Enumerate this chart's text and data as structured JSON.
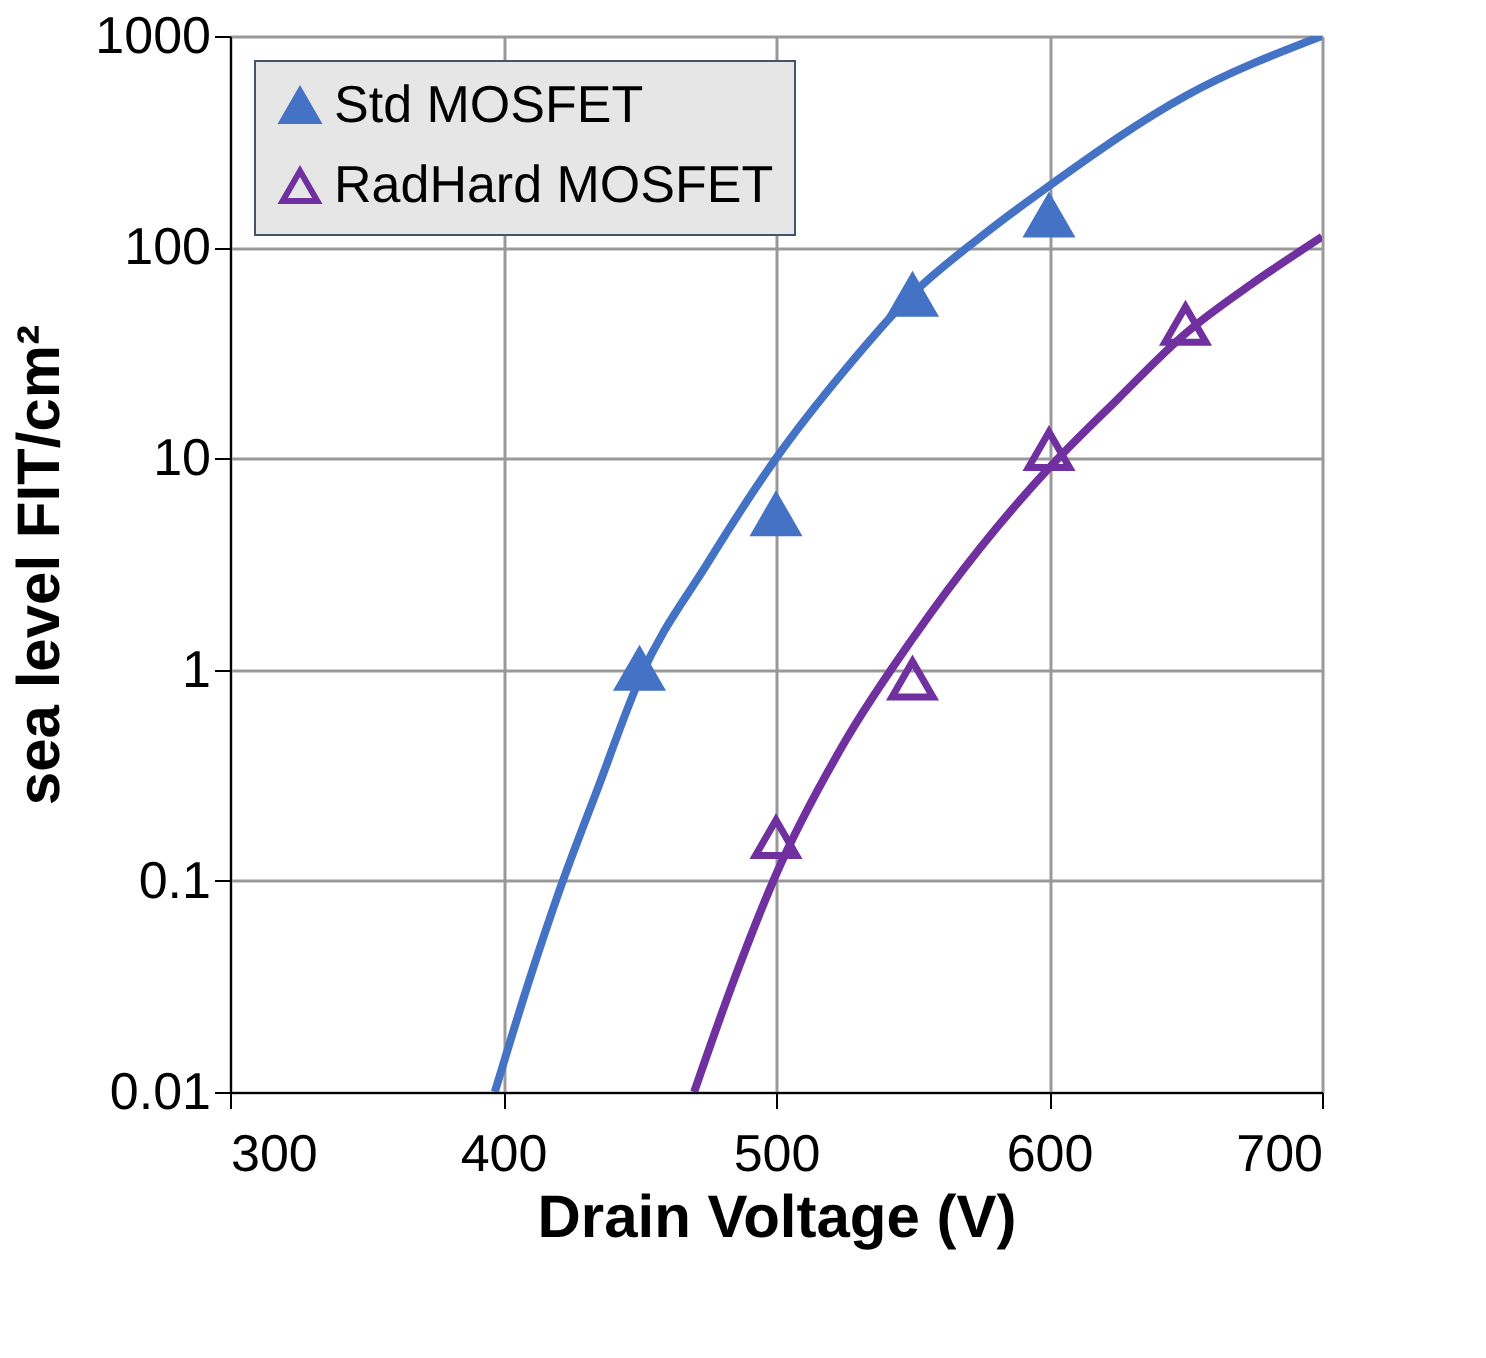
{
  "chart_data": {
    "type": "scatter",
    "xlabel": "Drain Voltage (V)",
    "ylabel": "sea level FIT/cm²",
    "xlim": [
      300,
      700
    ],
    "xticks": [
      300,
      400,
      500,
      600,
      700
    ],
    "ylim": [
      0.01,
      1000
    ],
    "yticks": [
      0.01,
      0.1,
      1,
      10,
      100,
      1000
    ],
    "log": true,
    "grid": true,
    "legend": "top left",
    "series": [
      {
        "name": "Std MOSFET",
        "color": "#4472c4",
        "marker": "triangle",
        "x": [
          450,
          500,
          550,
          600
        ],
        "values": [
          1.0,
          5.4,
          59,
          140
        ]
      },
      {
        "name": "RadHard MOSFET",
        "color": "#7030a0",
        "marker": "triangle",
        "x": [
          500,
          550,
          600,
          650
        ],
        "values": [
          0.16,
          0.9,
          11,
          43
        ]
      },
      {
        "type": "line",
        "color": "#4472c4",
        "marker": "none",
        "line_style": "solid",
        "x": [
          397,
          410,
          420,
          435,
          450,
          475,
          500,
          525,
          550,
          575,
          600,
          650,
          700
        ],
        "values": [
          0.01,
          0.035,
          0.085,
          0.28,
          0.9,
          3.2,
          10,
          26,
          60,
          112,
          195,
          520,
          1000
        ]
      },
      {
        "type": "line",
        "color": "#7030a0",
        "marker": "none",
        "line_style": "solid",
        "x": [
          470,
          485,
          500,
          525,
          550,
          575,
          600,
          625,
          650,
          675,
          700
        ],
        "values": [
          0.01,
          0.035,
          0.107,
          0.45,
          1.4,
          3.8,
          9,
          19,
          39,
          68,
          112
        ]
      }
    ]
  }
}
